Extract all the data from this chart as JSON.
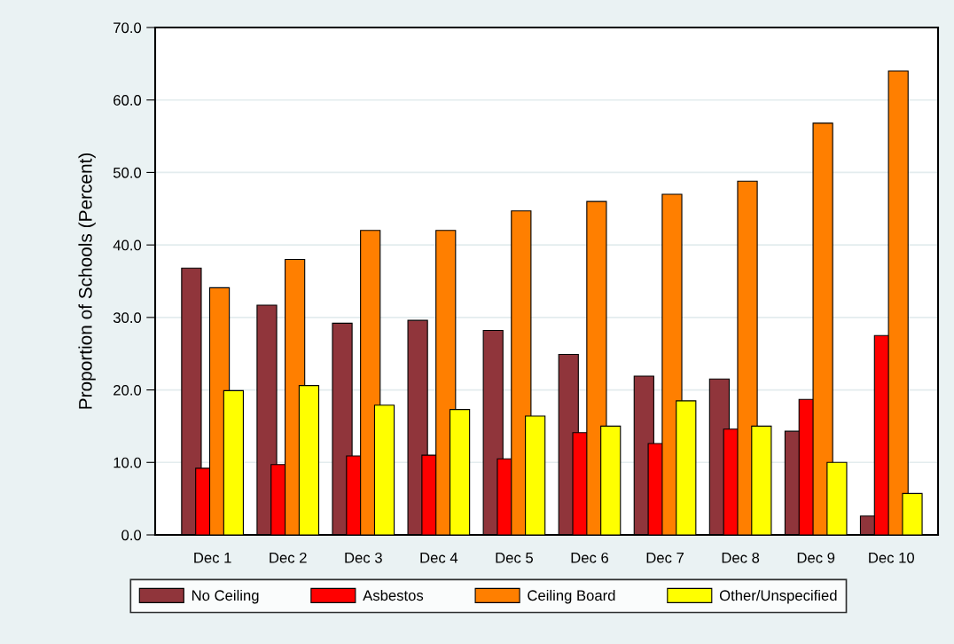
{
  "chart_data": {
    "type": "bar",
    "ylabel": "Proportion of Schools (Percent)",
    "categories": [
      "Dec 1",
      "Dec 2",
      "Dec 3",
      "Dec 4",
      "Dec 5",
      "Dec 6",
      "Dec 7",
      "Dec 8",
      "Dec 9",
      "Dec 10"
    ],
    "series": [
      {
        "name": "No Ceiling",
        "color": "#90353b",
        "values": [
          36.8,
          31.7,
          29.2,
          29.6,
          28.2,
          24.9,
          21.9,
          21.5,
          14.3,
          2.6
        ]
      },
      {
        "name": "Asbestos",
        "color": "#ff0000",
        "values": [
          9.2,
          9.7,
          10.9,
          11.0,
          10.5,
          14.1,
          12.6,
          14.6,
          18.7,
          27.5
        ]
      },
      {
        "name": "Ceiling Board",
        "color": "#ff7f00",
        "values": [
          34.1,
          38.0,
          42.0,
          42.0,
          44.7,
          46.0,
          47.0,
          48.8,
          56.8,
          64.0
        ]
      },
      {
        "name": "Other/Unspecified",
        "color": "#ffff00",
        "values": [
          19.9,
          20.6,
          17.9,
          17.3,
          16.4,
          15.0,
          18.5,
          15.0,
          10.0,
          5.7
        ]
      }
    ],
    "ylim": [
      0,
      70
    ],
    "yticks": [
      {
        "value": 0,
        "label": "0.0"
      },
      {
        "value": 10,
        "label": "10.0"
      },
      {
        "value": 20,
        "label": "20.0"
      },
      {
        "value": 30,
        "label": "30.0"
      },
      {
        "value": 40,
        "label": "40.0"
      },
      {
        "value": 50,
        "label": "50.0"
      },
      {
        "value": 60,
        "label": "60.0"
      },
      {
        "value": 70,
        "label": "70.0"
      }
    ],
    "grid": "y",
    "legend": "bottom"
  }
}
